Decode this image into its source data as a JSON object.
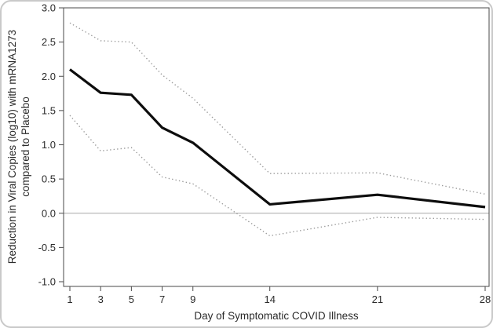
{
  "figure": {
    "y_axis_label_line1": "Reduction in Viral Copies (log10) with mRNA1273",
    "y_axis_label_line2": "compared to Placebo",
    "x_axis_label": "Day of Symptomatic COVID Illness"
  },
  "colors": {
    "estimate_line": "#0d0d0d",
    "ci_line": "#9b9b9b",
    "axis": "#4a4a4a",
    "zero_line": "#a8a8a8",
    "card_border": "#c9c9c9",
    "background": "#ffffff",
    "text": "#2b2b2b"
  },
  "chart_data": {
    "type": "line",
    "title": "",
    "xlabel": "Day of Symptomatic COVID Illness",
    "ylabel": "Reduction in Viral Copies (log10) with mRNA1273 compared to Placebo",
    "x": [
      1,
      3,
      5,
      7,
      9,
      14,
      21,
      28
    ],
    "xticks": [
      1,
      3,
      5,
      7,
      9,
      14,
      21,
      28
    ],
    "yticks": [
      3.0,
      2.5,
      2.0,
      1.5,
      1.0,
      0.5,
      0.0,
      -0.5,
      -1.0
    ],
    "xlim": [
      1,
      28
    ],
    "ylim": [
      -1.0,
      3.0
    ],
    "grid": false,
    "legend": "none",
    "reference_line_y": 0.0,
    "series": [
      {
        "name": "estimate",
        "line_style": "solid",
        "values": [
          2.1,
          1.76,
          1.73,
          1.25,
          1.03,
          0.13,
          0.27,
          0.09
        ]
      },
      {
        "name": "upper-confidence-bound",
        "line_style": "dotted",
        "values": [
          2.78,
          2.52,
          2.5,
          2.02,
          1.68,
          0.58,
          0.59,
          0.28
        ]
      },
      {
        "name": "lower-confidence-bound",
        "line_style": "dotted",
        "values": [
          1.43,
          0.91,
          0.96,
          0.53,
          0.43,
          -0.33,
          -0.06,
          -0.09
        ]
      }
    ]
  }
}
